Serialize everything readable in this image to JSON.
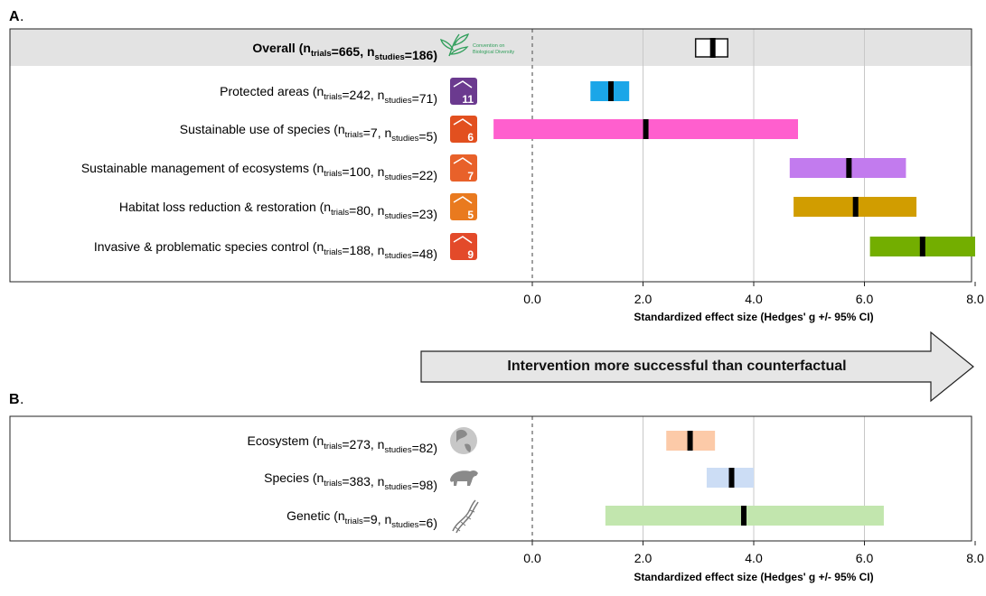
{
  "panels": [
    {
      "label": "A",
      "label_suffix": ".",
      "ticks": [
        "0.0",
        "2.0",
        "4.0",
        "6.0",
        "8.0"
      ],
      "xlabel": "Standardized effect size (Hedges' g +/- 95% CI)",
      "overall_logo_text": [
        "Convention on",
        "Biological Diversity"
      ],
      "rows": [
        {
          "label": "Overall",
          "bold": true,
          "highlight": true,
          "n_trials": "665",
          "n_studies": "186",
          "icon": "cbd-leaf-logo-icon"
        },
        {
          "label": "Protected areas",
          "n_trials": "242",
          "n_studies": "71",
          "icon": "aichi-target-11-icon",
          "icon_number": "11",
          "icon_color": "#6B3A8F"
        },
        {
          "label": "Sustainable use of species",
          "n_trials": "7",
          "n_studies": "5",
          "icon": "aichi-target-6-icon",
          "icon_number": "6",
          "icon_color": "#E2501F"
        },
        {
          "label": "Sustainable management of ecosystems",
          "n_trials": "100",
          "n_studies": "22",
          "icon": "aichi-target-7-icon",
          "icon_number": "7",
          "icon_color": "#E8612A"
        },
        {
          "label": "Habitat loss reduction & restoration",
          "n_trials": "80",
          "n_studies": "23",
          "icon": "aichi-target-5-icon",
          "icon_number": "5",
          "icon_color": "#E97A1F"
        },
        {
          "label": "Invasive & problematic species control",
          "n_trials": "188",
          "n_studies": "48",
          "icon": "aichi-target-9-icon",
          "icon_number": "9",
          "icon_color": "#E34A2A"
        }
      ]
    },
    {
      "label": "B",
      "label_suffix": ".",
      "ticks": [
        "0.0",
        "2.0",
        "4.0",
        "6.0",
        "8.0"
      ],
      "xlabel": "Standardized effect size (Hedges' g +/- 95% CI)",
      "rows": [
        {
          "label": "Ecosystem",
          "n_trials": "273",
          "n_studies": "82",
          "icon": "globe-icon"
        },
        {
          "label": "Species",
          "n_trials": "383",
          "n_studies": "98",
          "icon": "polar-bear-icon"
        },
        {
          "label": "Genetic",
          "n_trials": "9",
          "n_studies": "6",
          "icon": "dna-helix-icon"
        }
      ]
    }
  ],
  "arrow_text": "Intervention more successful than counterfactual",
  "chart_data": [
    {
      "type": "forest",
      "panel": "A",
      "xlim": [
        0,
        8
      ],
      "xticks": [
        0,
        2,
        4,
        6,
        8
      ],
      "xlabel": "Standardized effect size (Hedges' g +/- 95% CI)",
      "grid": "vertical",
      "reference_line": 0,
      "categories": [
        "Overall",
        "Protected areas",
        "Sustainable use of species",
        "Sustainable management of ecosystems",
        "Habitat loss reduction & restoration",
        "Invasive & problematic species control"
      ],
      "points": [
        {
          "category": "Overall",
          "estimate": 3.26,
          "ci_low": 2.95,
          "ci_high": 3.53,
          "n_trials": 665,
          "n_studies": 186,
          "color": "#ffffff"
        },
        {
          "category": "Protected areas",
          "estimate": 1.42,
          "ci_low": 1.05,
          "ci_high": 1.75,
          "n_trials": 242,
          "n_studies": 71,
          "color": "#1BA6E8"
        },
        {
          "category": "Sustainable use of species",
          "estimate": 2.05,
          "ci_low": -0.7,
          "ci_high": 4.8,
          "n_trials": 7,
          "n_studies": 5,
          "color": "#FF5FCE"
        },
        {
          "category": "Sustainable management of ecosystems",
          "estimate": 5.72,
          "ci_low": 4.65,
          "ci_high": 6.75,
          "n_trials": 100,
          "n_studies": 22,
          "color": "#C27BEE"
        },
        {
          "category": "Habitat loss reduction & restoration",
          "estimate": 5.84,
          "ci_low": 4.72,
          "ci_high": 6.94,
          "n_trials": 80,
          "n_studies": 23,
          "color": "#D19D00"
        },
        {
          "category": "Invasive & problematic species control",
          "estimate": 7.05,
          "ci_low": 6.1,
          "ci_high": 8.0,
          "n_trials": 188,
          "n_studies": 48,
          "color": "#73AE00"
        }
      ]
    },
    {
      "type": "forest",
      "panel": "B",
      "xlim": [
        0,
        8
      ],
      "xticks": [
        0,
        2,
        4,
        6,
        8
      ],
      "xlabel": "Standardized effect size (Hedges' g +/- 95% CI)",
      "grid": "vertical",
      "reference_line": 0,
      "categories": [
        "Ecosystem",
        "Species",
        "Genetic"
      ],
      "points": [
        {
          "category": "Ecosystem",
          "estimate": 2.85,
          "ci_low": 2.42,
          "ci_high": 3.3,
          "n_trials": 273,
          "n_studies": 82,
          "color": "#FCCAA8"
        },
        {
          "category": "Species",
          "estimate": 3.6,
          "ci_low": 3.15,
          "ci_high": 4.0,
          "n_trials": 383,
          "n_studies": 98,
          "color": "#CCDDF5"
        },
        {
          "category": "Genetic",
          "estimate": 3.82,
          "ci_low": 1.32,
          "ci_high": 6.35,
          "n_trials": 9,
          "n_studies": 6,
          "color": "#C2E6AE"
        }
      ]
    }
  ]
}
